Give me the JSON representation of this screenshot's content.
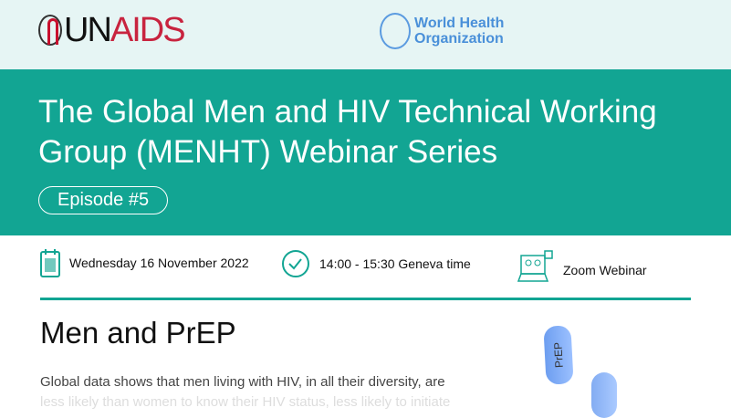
{
  "logos": {
    "unaids_un": "UN",
    "unaids_aids": "AIDS",
    "who_line1": "World Health",
    "who_line2": "Organization"
  },
  "banner": {
    "title": "The Global Men and HIV Technical Working Group (MENHT) Webinar Series",
    "episode": "Episode #5"
  },
  "info": {
    "date": "Wednesday 16 November 2022",
    "time": "14:00 - 15:30 Geneva time",
    "platform": "Zoom Webinar"
  },
  "section": {
    "heading": "Men and PrEP",
    "paragraph_line1": "Global data shows that men living with HIV, in all their diversity, are",
    "paragraph_line2": "less likely than women to know their HIV status, less likely to initiate"
  },
  "pill_label": "PrEP",
  "colors": {
    "teal": "#12a593",
    "unaids_red": "#c8243f",
    "who_blue": "#4a90d9"
  }
}
